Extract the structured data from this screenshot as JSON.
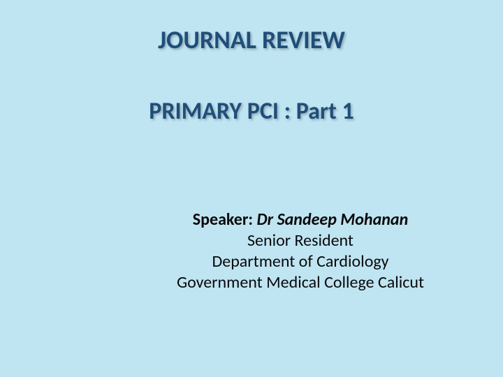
{
  "slide": {
    "background_color": "#bfe4f2",
    "title": {
      "text": "JOURNAL REVIEW",
      "color": "#1f4e79",
      "fontsize": 36
    },
    "subtitle": {
      "text": "PRIMARY PCI : Part 1",
      "color": "#1f4e79",
      "fontsize": 34
    },
    "speaker": {
      "label": "Speaker: ",
      "name": "Dr Sandeep Mohanan",
      "line2": "Senior Resident",
      "line3": "Department of Cardiology",
      "line4": "Government Medical College Calicut",
      "color": "#0a0a0a",
      "fontsize": 24
    }
  }
}
